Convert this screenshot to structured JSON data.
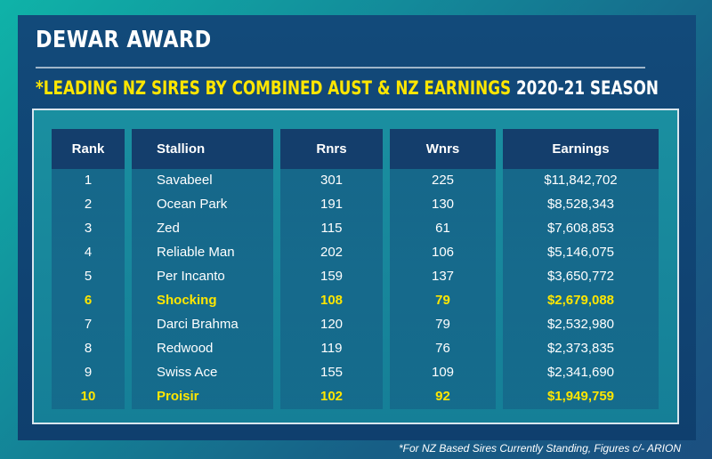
{
  "title": "DEWAR AWARD",
  "subtitle_highlight": "*LEADING NZ SIRES BY COMBINED AUST & NZ EARNINGS",
  "subtitle_season": "2020-21 SEASON",
  "table": {
    "headers": {
      "rank": "Rank",
      "stallion": "Stallion",
      "rnrs": "Rnrs",
      "wnrs": "Wnrs",
      "earnings": "Earnings"
    },
    "rows": [
      {
        "rank": "1",
        "stallion": "Savabeel",
        "rnrs": "301",
        "wnrs": "225",
        "earnings": "$11,842,702",
        "highlight": false
      },
      {
        "rank": "2",
        "stallion": "Ocean Park",
        "rnrs": "191",
        "wnrs": "130",
        "earnings": "$8,528,343",
        "highlight": false
      },
      {
        "rank": "3",
        "stallion": "Zed",
        "rnrs": "115",
        "wnrs": "61",
        "earnings": "$7,608,853",
        "highlight": false
      },
      {
        "rank": "4",
        "stallion": "Reliable Man",
        "rnrs": "202",
        "wnrs": "106",
        "earnings": "$5,146,075",
        "highlight": false
      },
      {
        "rank": "5",
        "stallion": "Per Incanto",
        "rnrs": "159",
        "wnrs": "137",
        "earnings": "$3,650,772",
        "highlight": false
      },
      {
        "rank": "6",
        "stallion": "Shocking",
        "rnrs": "108",
        "wnrs": "79",
        "earnings": "$2,679,088",
        "highlight": true
      },
      {
        "rank": "7",
        "stallion": "Darci Brahma",
        "rnrs": "120",
        "wnrs": "79",
        "earnings": "$2,532,980",
        "highlight": false
      },
      {
        "rank": "8",
        "stallion": "Redwood",
        "rnrs": "119",
        "wnrs": "76",
        "earnings": "$2,373,835",
        "highlight": false
      },
      {
        "rank": "9",
        "stallion": "Swiss Ace",
        "rnrs": "155",
        "wnrs": "109",
        "earnings": "$2,341,690",
        "highlight": false
      },
      {
        "rank": "10",
        "stallion": "Proisir",
        "rnrs": "102",
        "wnrs": "92",
        "earnings": "$1,949,759",
        "highlight": true
      }
    ]
  },
  "footnote": "*For NZ Based Sires Currently Standing, Figures c/- ARION",
  "colors": {
    "highlight": "#ffe600",
    "panel": "#124a7a",
    "header": "#143e6c"
  }
}
